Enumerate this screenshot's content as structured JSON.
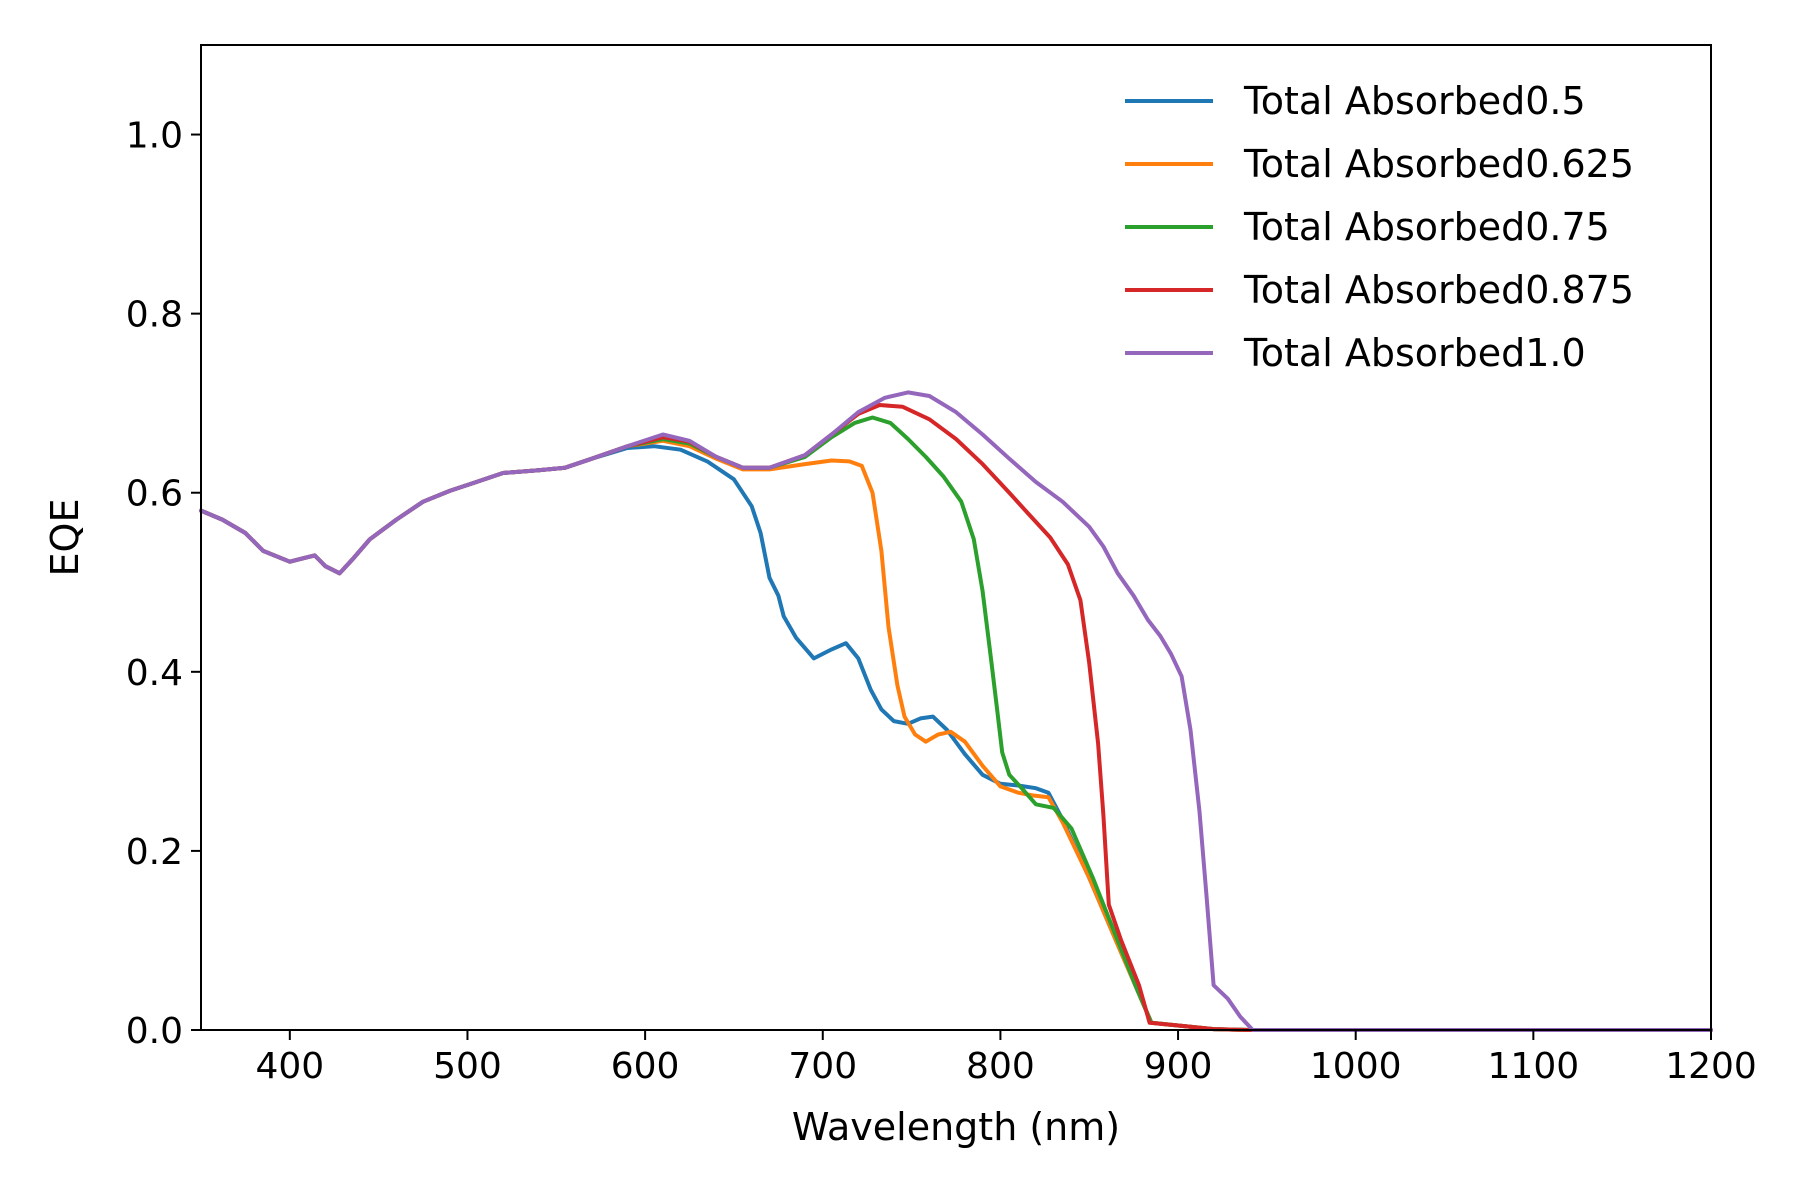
{
  "chart_data": {
    "type": "line",
    "title": "",
    "xlabel": "Wavelength (nm)",
    "ylabel": "EQE",
    "xlim": [
      350,
      1200
    ],
    "ylim": [
      0,
      1.1
    ],
    "xticks": [
      400,
      500,
      600,
      700,
      800,
      900,
      1000,
      1100,
      1200
    ],
    "yticks": [
      0.0,
      0.2,
      0.4,
      0.6,
      0.8,
      1.0
    ],
    "xtick_labels": [
      "400",
      "500",
      "600",
      "700",
      "800",
      "900",
      "1000",
      "1100",
      "1200"
    ],
    "ytick_labels": [
      "0.0",
      "0.2",
      "0.4",
      "0.6",
      "0.8",
      "1.0"
    ],
    "grid": false,
    "legend_position": "top-right",
    "series": [
      {
        "name": "Total Absorbed0.5",
        "color": "#1f77b4",
        "points": [
          [
            350,
            0.58
          ],
          [
            362,
            0.57
          ],
          [
            375,
            0.555
          ],
          [
            385,
            0.535
          ],
          [
            400,
            0.523
          ],
          [
            408,
            0.527
          ],
          [
            414,
            0.53
          ],
          [
            420,
            0.518
          ],
          [
            428,
            0.51
          ],
          [
            435,
            0.525
          ],
          [
            445,
            0.548
          ],
          [
            460,
            0.57
          ],
          [
            475,
            0.59
          ],
          [
            490,
            0.602
          ],
          [
            505,
            0.612
          ],
          [
            520,
            0.622
          ],
          [
            540,
            0.625
          ],
          [
            555,
            0.628
          ],
          [
            570,
            0.638
          ],
          [
            590,
            0.65
          ],
          [
            605,
            0.652
          ],
          [
            620,
            0.648
          ],
          [
            635,
            0.635
          ],
          [
            650,
            0.615
          ],
          [
            660,
            0.585
          ],
          [
            665,
            0.555
          ],
          [
            670,
            0.505
          ],
          [
            675,
            0.485
          ],
          [
            678,
            0.462
          ],
          [
            685,
            0.438
          ],
          [
            695,
            0.415
          ],
          [
            705,
            0.425
          ],
          [
            713,
            0.432
          ],
          [
            720,
            0.415
          ],
          [
            727,
            0.38
          ],
          [
            733,
            0.358
          ],
          [
            740,
            0.345
          ],
          [
            748,
            0.342
          ],
          [
            755,
            0.348
          ],
          [
            762,
            0.35
          ],
          [
            770,
            0.335
          ],
          [
            780,
            0.308
          ],
          [
            790,
            0.285
          ],
          [
            800,
            0.275
          ],
          [
            810,
            0.273
          ],
          [
            820,
            0.27
          ],
          [
            827,
            0.265
          ],
          [
            835,
            0.235
          ],
          [
            850,
            0.17
          ],
          [
            865,
            0.1
          ],
          [
            877,
            0.045
          ],
          [
            885,
            0.008
          ],
          [
            900,
            0.005
          ],
          [
            920,
            0.001
          ],
          [
            940,
            0.0
          ],
          [
            1000,
            0.0
          ],
          [
            1100,
            0.0
          ],
          [
            1200,
            0.0
          ]
        ]
      },
      {
        "name": "Total Absorbed0.625",
        "color": "#ff7f0e",
        "points": [
          [
            350,
            0.58
          ],
          [
            362,
            0.57
          ],
          [
            375,
            0.555
          ],
          [
            385,
            0.535
          ],
          [
            400,
            0.523
          ],
          [
            408,
            0.527
          ],
          [
            414,
            0.53
          ],
          [
            420,
            0.518
          ],
          [
            428,
            0.51
          ],
          [
            435,
            0.525
          ],
          [
            445,
            0.548
          ],
          [
            460,
            0.57
          ],
          [
            475,
            0.59
          ],
          [
            490,
            0.602
          ],
          [
            505,
            0.612
          ],
          [
            520,
            0.622
          ],
          [
            540,
            0.625
          ],
          [
            555,
            0.628
          ],
          [
            570,
            0.638
          ],
          [
            590,
            0.652
          ],
          [
            610,
            0.658
          ],
          [
            625,
            0.652
          ],
          [
            640,
            0.638
          ],
          [
            655,
            0.626
          ],
          [
            670,
            0.626
          ],
          [
            690,
            0.632
          ],
          [
            705,
            0.636
          ],
          [
            715,
            0.635
          ],
          [
            722,
            0.63
          ],
          [
            728,
            0.6
          ],
          [
            733,
            0.535
          ],
          [
            737,
            0.45
          ],
          [
            742,
            0.385
          ],
          [
            746,
            0.35
          ],
          [
            752,
            0.33
          ],
          [
            758,
            0.322
          ],
          [
            765,
            0.33
          ],
          [
            772,
            0.333
          ],
          [
            780,
            0.322
          ],
          [
            790,
            0.295
          ],
          [
            800,
            0.272
          ],
          [
            810,
            0.265
          ],
          [
            818,
            0.262
          ],
          [
            827,
            0.26
          ],
          [
            835,
            0.232
          ],
          [
            850,
            0.17
          ],
          [
            865,
            0.1
          ],
          [
            877,
            0.045
          ],
          [
            885,
            0.008
          ],
          [
            900,
            0.005
          ],
          [
            920,
            0.001
          ],
          [
            940,
            0.0
          ],
          [
            1000,
            0.0
          ],
          [
            1100,
            0.0
          ],
          [
            1200,
            0.0
          ]
        ]
      },
      {
        "name": "Total Absorbed0.75",
        "color": "#2ca02c",
        "points": [
          [
            350,
            0.58
          ],
          [
            362,
            0.57
          ],
          [
            375,
            0.555
          ],
          [
            385,
            0.535
          ],
          [
            400,
            0.523
          ],
          [
            408,
            0.527
          ],
          [
            414,
            0.53
          ],
          [
            420,
            0.518
          ],
          [
            428,
            0.51
          ],
          [
            435,
            0.525
          ],
          [
            445,
            0.548
          ],
          [
            460,
            0.57
          ],
          [
            475,
            0.59
          ],
          [
            490,
            0.602
          ],
          [
            505,
            0.612
          ],
          [
            520,
            0.622
          ],
          [
            540,
            0.625
          ],
          [
            555,
            0.628
          ],
          [
            570,
            0.638
          ],
          [
            590,
            0.652
          ],
          [
            610,
            0.66
          ],
          [
            625,
            0.655
          ],
          [
            640,
            0.64
          ],
          [
            655,
            0.628
          ],
          [
            670,
            0.628
          ],
          [
            690,
            0.64
          ],
          [
            705,
            0.662
          ],
          [
            718,
            0.678
          ],
          [
            728,
            0.684
          ],
          [
            738,
            0.678
          ],
          [
            748,
            0.66
          ],
          [
            758,
            0.64
          ],
          [
            768,
            0.618
          ],
          [
            778,
            0.59
          ],
          [
            785,
            0.548
          ],
          [
            790,
            0.49
          ],
          [
            795,
            0.41
          ],
          [
            798,
            0.36
          ],
          [
            801,
            0.31
          ],
          [
            805,
            0.285
          ],
          [
            812,
            0.27
          ],
          [
            820,
            0.252
          ],
          [
            830,
            0.248
          ],
          [
            840,
            0.225
          ],
          [
            852,
            0.17
          ],
          [
            865,
            0.105
          ],
          [
            877,
            0.045
          ],
          [
            885,
            0.008
          ],
          [
            900,
            0.005
          ],
          [
            920,
            0.001
          ],
          [
            940,
            0.0
          ],
          [
            1000,
            0.0
          ],
          [
            1100,
            0.0
          ],
          [
            1200,
            0.0
          ]
        ]
      },
      {
        "name": "Total Absorbed0.875",
        "color": "#d62728",
        "points": [
          [
            350,
            0.58
          ],
          [
            362,
            0.57
          ],
          [
            375,
            0.555
          ],
          [
            385,
            0.535
          ],
          [
            400,
            0.523
          ],
          [
            408,
            0.527
          ],
          [
            414,
            0.53
          ],
          [
            420,
            0.518
          ],
          [
            428,
            0.51
          ],
          [
            435,
            0.525
          ],
          [
            445,
            0.548
          ],
          [
            460,
            0.57
          ],
          [
            475,
            0.59
          ],
          [
            490,
            0.602
          ],
          [
            505,
            0.612
          ],
          [
            520,
            0.622
          ],
          [
            540,
            0.625
          ],
          [
            555,
            0.628
          ],
          [
            570,
            0.638
          ],
          [
            590,
            0.652
          ],
          [
            610,
            0.662
          ],
          [
            625,
            0.657
          ],
          [
            640,
            0.64
          ],
          [
            655,
            0.628
          ],
          [
            670,
            0.628
          ],
          [
            690,
            0.642
          ],
          [
            705,
            0.665
          ],
          [
            720,
            0.688
          ],
          [
            732,
            0.698
          ],
          [
            745,
            0.696
          ],
          [
            760,
            0.682
          ],
          [
            775,
            0.66
          ],
          [
            790,
            0.632
          ],
          [
            805,
            0.6
          ],
          [
            815,
            0.578
          ],
          [
            828,
            0.55
          ],
          [
            838,
            0.52
          ],
          [
            845,
            0.48
          ],
          [
            850,
            0.41
          ],
          [
            855,
            0.32
          ],
          [
            858,
            0.24
          ],
          [
            861,
            0.14
          ],
          [
            868,
            0.1
          ],
          [
            878,
            0.05
          ],
          [
            884,
            0.008
          ],
          [
            900,
            0.005
          ],
          [
            920,
            0.001
          ],
          [
            940,
            0.0
          ],
          [
            1000,
            0.0
          ],
          [
            1100,
            0.0
          ],
          [
            1200,
            0.0
          ]
        ]
      },
      {
        "name": "Total Absorbed1.0",
        "color": "#9467bd",
        "points": [
          [
            350,
            0.58
          ],
          [
            362,
            0.57
          ],
          [
            375,
            0.555
          ],
          [
            385,
            0.535
          ],
          [
            400,
            0.523
          ],
          [
            408,
            0.527
          ],
          [
            414,
            0.53
          ],
          [
            420,
            0.518
          ],
          [
            428,
            0.51
          ],
          [
            435,
            0.525
          ],
          [
            445,
            0.548
          ],
          [
            460,
            0.57
          ],
          [
            475,
            0.59
          ],
          [
            490,
            0.602
          ],
          [
            505,
            0.612
          ],
          [
            520,
            0.622
          ],
          [
            540,
            0.625
          ],
          [
            555,
            0.628
          ],
          [
            570,
            0.638
          ],
          [
            590,
            0.652
          ],
          [
            610,
            0.665
          ],
          [
            625,
            0.658
          ],
          [
            640,
            0.64
          ],
          [
            655,
            0.628
          ],
          [
            670,
            0.628
          ],
          [
            690,
            0.642
          ],
          [
            705,
            0.665
          ],
          [
            720,
            0.69
          ],
          [
            735,
            0.706
          ],
          [
            748,
            0.712
          ],
          [
            760,
            0.708
          ],
          [
            775,
            0.69
          ],
          [
            790,
            0.665
          ],
          [
            805,
            0.638
          ],
          [
            820,
            0.612
          ],
          [
            835,
            0.59
          ],
          [
            850,
            0.562
          ],
          [
            858,
            0.54
          ],
          [
            866,
            0.51
          ],
          [
            875,
            0.485
          ],
          [
            883,
            0.458
          ],
          [
            890,
            0.44
          ],
          [
            896,
            0.42
          ],
          [
            902,
            0.395
          ],
          [
            907,
            0.335
          ],
          [
            912,
            0.245
          ],
          [
            916,
            0.15
          ],
          [
            920,
            0.05
          ],
          [
            928,
            0.035
          ],
          [
            935,
            0.015
          ],
          [
            942,
            0.0
          ],
          [
            1000,
            0.0
          ],
          [
            1100,
            0.0
          ],
          [
            1200,
            0.0
          ]
        ]
      }
    ]
  }
}
